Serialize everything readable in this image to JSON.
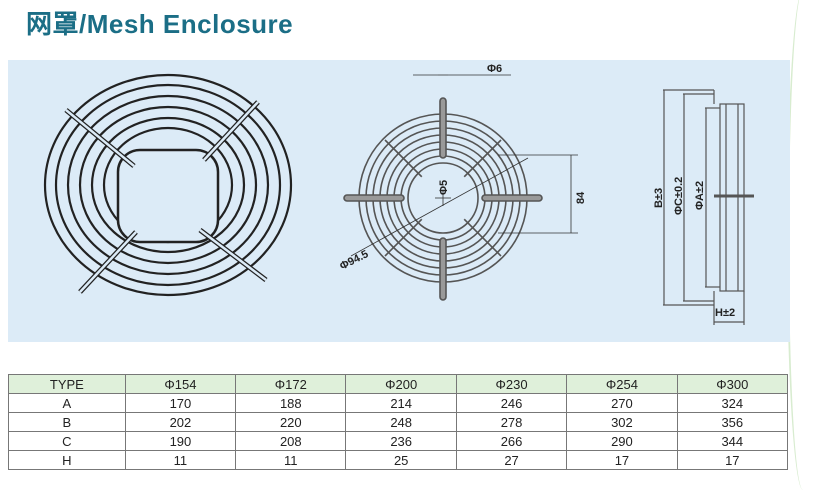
{
  "title": "网罩/Mesh Enclosure",
  "drawing": {
    "labels": {
      "wire": "Φ6",
      "hole": "Φ5",
      "bolt_circle": "Φ94.5",
      "hole_spacing": "84",
      "b": "B±3",
      "c": "ΦC±0.2",
      "a": "ΦA±2",
      "h": "H±2"
    }
  },
  "table": {
    "headers": [
      "TYPE",
      "Φ154",
      "Φ172",
      "Φ200",
      "Φ230",
      "Φ254",
      "Φ300"
    ],
    "rows": [
      [
        "A",
        "170",
        "188",
        "214",
        "246",
        "270",
        "324"
      ],
      [
        "B",
        "202",
        "220",
        "248",
        "278",
        "302",
        "356"
      ],
      [
        "C",
        "190",
        "208",
        "236",
        "266",
        "290",
        "344"
      ],
      [
        "H",
        "11",
        "11",
        "25",
        "27",
        "17",
        "17"
      ]
    ]
  }
}
